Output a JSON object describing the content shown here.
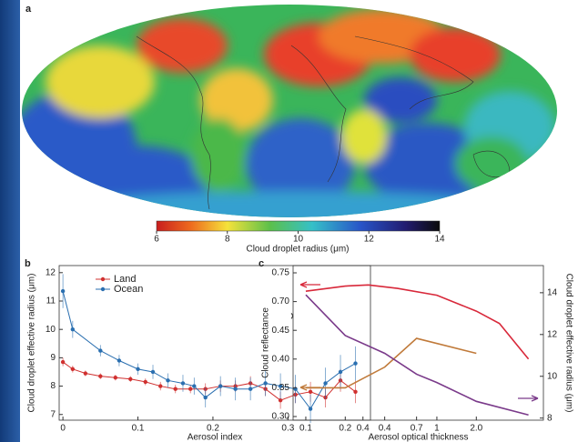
{
  "chart_data": [
    {
      "type": "map",
      "label": "a",
      "colorbar": {
        "label": "Cloud droplet radius (μm)",
        "clim": [
          6,
          14
        ],
        "ticks": [
          6,
          8,
          10,
          12,
          14
        ]
      }
    },
    {
      "type": "line",
      "label": "b",
      "xlabel": "Aerosol index",
      "ylabel": "Cloud droplet effective radius (μm)",
      "xlim": [
        -0.005,
        0.41
      ],
      "xticks": [
        0,
        0.1,
        0.2,
        0.3,
        0.4
      ],
      "ylim": [
        6.8,
        12.25
      ],
      "yticks": [
        7,
        8,
        9,
        10,
        11,
        12
      ],
      "legend": "top-left",
      "series": [
        {
          "name": "Land",
          "color": "#d0302f",
          "x": [
            0,
            0.013,
            0.03,
            0.05,
            0.07,
            0.09,
            0.11,
            0.13,
            0.15,
            0.17,
            0.19,
            0.21,
            0.23,
            0.25,
            0.27,
            0.29,
            0.31,
            0.33,
            0.35,
            0.37,
            0.39
          ],
          "values": [
            8.85,
            8.6,
            8.45,
            8.35,
            8.3,
            8.25,
            8.15,
            8.0,
            7.9,
            7.9,
            7.9,
            8.0,
            8.0,
            8.1,
            7.9,
            7.5,
            7.7,
            7.8,
            7.6,
            8.2,
            7.8
          ],
          "errors": [
            0.15,
            0.12,
            0.1,
            0.1,
            0.1,
            0.1,
            0.12,
            0.15,
            0.15,
            0.15,
            0.2,
            0.2,
            0.2,
            0.25,
            0.25,
            0.3,
            0.3,
            0.35,
            0.35,
            0.4,
            0.4
          ]
        },
        {
          "name": "Ocean",
          "color": "#2a6fb0",
          "x": [
            0,
            0.013,
            0.05,
            0.075,
            0.1,
            0.12,
            0.14,
            0.16,
            0.175,
            0.19,
            0.21,
            0.23,
            0.25,
            0.27,
            0.29,
            0.31,
            0.33,
            0.35,
            0.37,
            0.39
          ],
          "values": [
            11.35,
            10.0,
            9.25,
            8.9,
            8.6,
            8.5,
            8.2,
            8.1,
            8.0,
            7.6,
            8.0,
            7.9,
            7.9,
            8.1,
            8.0,
            7.9,
            7.2,
            8.1,
            8.5,
            8.8
          ],
          "errors": [
            0.6,
            0.3,
            0.2,
            0.2,
            0.2,
            0.25,
            0.25,
            0.3,
            0.3,
            0.35,
            0.35,
            0.4,
            0.4,
            0.45,
            0.45,
            0.5,
            0.5,
            0.55,
            0.6,
            0.6
          ]
        }
      ]
    },
    {
      "type": "line",
      "label": "c",
      "xlabel": "Aerosol optical thickness",
      "ylabel": "Cloud reflectance",
      "y2label": "Cloud droplet effective radius (μm)",
      "xscale": "log",
      "xlim": [
        0.08,
        6.5
      ],
      "xticks": [
        0.1,
        0.2,
        0.4,
        0.7,
        1,
        {
          "value": 2,
          "label": "2.0"
        }
      ],
      "yscale": "broken",
      "yticks": [
        {
          "value": 0.3,
          "label": "0.30"
        },
        0.35,
        {
          "value": 0.4,
          "label": "0.40"
        },
        0.45,
        {
          "value": 0.7,
          "label": "0.70"
        },
        0.75
      ],
      "y2lim": [
        7.9,
        15.3
      ],
      "y2ticks": [
        8,
        10,
        12,
        14
      ],
      "series": [
        {
          "color": "#d8283a",
          "x": [
            0.1,
            0.2,
            0.3,
            0.5,
            1,
            2,
            3,
            5
          ],
          "values": [
            0.718,
            0.727,
            0.729,
            0.723,
            0.711,
            0.617,
            0.51,
            0.4
          ]
        },
        {
          "color": "#c07a3a",
          "x": [
            0.1,
            0.2,
            0.4,
            0.7,
            2
          ],
          "values": [
            0.35,
            0.35,
            0.386,
            0.436,
            0.41
          ]
        },
        {
          "color": "#7a3a8a",
          "axis": "y2",
          "x": [
            0.1,
            0.2,
            0.4,
            0.7,
            1,
            2,
            5
          ],
          "values": [
            13.9,
            11.95,
            11.1,
            10.1,
            9.7,
            8.8,
            8.15
          ]
        }
      ]
    }
  ]
}
